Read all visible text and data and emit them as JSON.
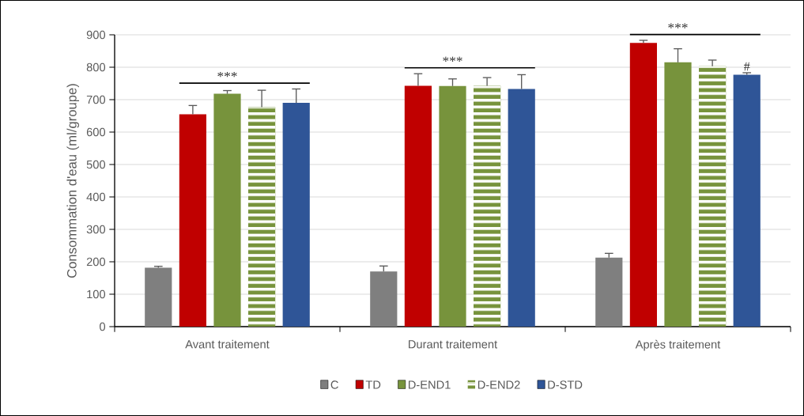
{
  "chart_data": {
    "type": "bar",
    "ylabel": "Consommation d'eau (ml/groupe)",
    "categories": [
      "Avant traitement",
      "Durant traitement",
      "Après traitement"
    ],
    "series": [
      {
        "name": "C",
        "color": "#7f7f7f",
        "values": [
          182,
          170,
          213
        ],
        "errors": [
          4,
          17,
          13
        ]
      },
      {
        "name": "TD",
        "color": "#c00000",
        "values": [
          655,
          743,
          875
        ],
        "errors": [
          27,
          37,
          8
        ]
      },
      {
        "name": "D-END1",
        "color": "#77933c",
        "values": [
          718,
          742,
          815
        ],
        "errors": [
          10,
          22,
          42
        ]
      },
      {
        "name": "D-END2",
        "color": "#77933c",
        "values": [
          677,
          743,
          803
        ],
        "errors": [
          52,
          25,
          19
        ]
      },
      {
        "name": "D-STD",
        "color": "#2f5597",
        "values": [
          690,
          733,
          777
        ],
        "errors": [
          43,
          44,
          6
        ]
      }
    ],
    "ylim": [
      0,
      900
    ],
    "yticks": [
      0,
      100,
      200,
      300,
      400,
      500,
      600,
      700,
      800,
      900
    ],
    "grid": "y",
    "legend": "bottom",
    "annotations": [
      "***",
      "***",
      "***",
      "#"
    ]
  }
}
